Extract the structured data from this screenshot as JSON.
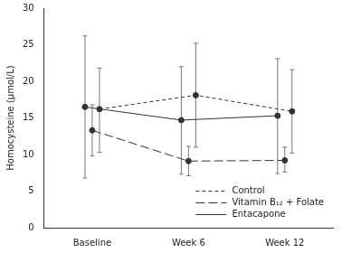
{
  "chart_data": {
    "type": "line",
    "categories": [
      "Baseline",
      "Week 6",
      "Week 12"
    ],
    "y_label": "Homocysteine (µmol/L)",
    "ylim": [
      0,
      30
    ],
    "yticks": [
      0,
      5,
      10,
      15,
      20,
      25,
      30
    ],
    "grid": false,
    "legend": "lower right",
    "series": [
      {
        "name": "Control",
        "color": "#333333",
        "line_style": "dashed",
        "marker": "circle",
        "values": [
          16.2,
          18.1,
          15.9
        ],
        "error_low": [
          10.3,
          11.0,
          10.2
        ],
        "error_high": [
          21.8,
          25.2,
          21.6
        ]
      },
      {
        "name": "Vitamin B₁₂ + Folate",
        "color": "#333333",
        "line_style": "longdash",
        "marker": "circle",
        "values": [
          13.3,
          9.1,
          9.2
        ],
        "error_low": [
          9.8,
          7.1,
          7.6
        ],
        "error_high": [
          16.8,
          11.1,
          11.0
        ]
      },
      {
        "name": "Entacapone",
        "color": "#333333",
        "line_style": "solid",
        "marker": "circle",
        "values": [
          16.5,
          14.7,
          15.3
        ],
        "error_low": [
          6.8,
          7.3,
          7.4
        ],
        "error_high": [
          26.2,
          22.0,
          23.1
        ]
      }
    ]
  }
}
